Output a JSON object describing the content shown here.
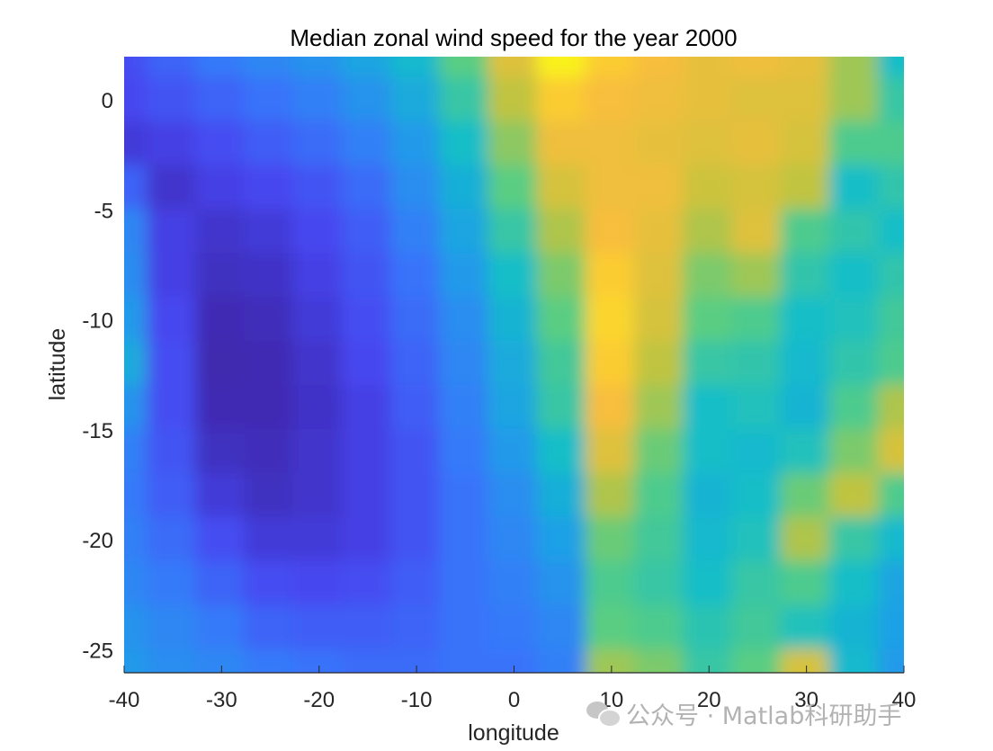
{
  "chart_data": {
    "type": "heatmap",
    "title": "Median zonal wind speed for the year 2000",
    "xlabel": "longitude",
    "ylabel": "latitude",
    "xlim": [
      -40,
      40
    ],
    "ylim": [
      -26,
      2
    ],
    "xticks": [
      -40,
      -30,
      -20,
      -10,
      0,
      10,
      20,
      30,
      40
    ],
    "yticks": [
      0,
      -5,
      -10,
      -15,
      -20,
      -25
    ],
    "colormap": "parula",
    "colorbar": false,
    "grid": false,
    "lon": [
      -40,
      -35,
      -30,
      -25,
      -20,
      -15,
      -10,
      -5,
      0,
      5,
      10,
      15,
      20,
      25,
      30,
      35,
      40
    ],
    "lat": [
      2,
      0,
      -2,
      -4,
      -6,
      -8,
      -10,
      -12,
      -14,
      -16,
      -18,
      -20,
      -22,
      -24,
      -26
    ],
    "values": [
      [
        0.14,
        0.2,
        0.26,
        0.3,
        0.34,
        0.4,
        0.48,
        0.62,
        0.8,
        0.98,
        0.9,
        0.86,
        0.82,
        0.84,
        0.82,
        0.7,
        0.5
      ],
      [
        0.12,
        0.16,
        0.2,
        0.24,
        0.28,
        0.34,
        0.42,
        0.56,
        0.74,
        0.9,
        0.86,
        0.84,
        0.82,
        0.8,
        0.8,
        0.7,
        0.56
      ],
      [
        0.08,
        0.1,
        0.14,
        0.18,
        0.22,
        0.28,
        0.36,
        0.5,
        0.68,
        0.84,
        0.84,
        0.82,
        0.8,
        0.82,
        0.78,
        0.6,
        0.6
      ],
      [
        0.2,
        0.06,
        0.1,
        0.12,
        0.16,
        0.22,
        0.32,
        0.44,
        0.62,
        0.78,
        0.84,
        0.84,
        0.76,
        0.78,
        0.74,
        0.5,
        0.55
      ],
      [
        0.3,
        0.1,
        0.06,
        0.08,
        0.12,
        0.18,
        0.28,
        0.4,
        0.56,
        0.72,
        0.86,
        0.82,
        0.72,
        0.8,
        0.6,
        0.55,
        0.5
      ],
      [
        0.32,
        0.1,
        0.04,
        0.05,
        0.1,
        0.16,
        0.24,
        0.36,
        0.5,
        0.66,
        0.9,
        0.8,
        0.66,
        0.7,
        0.55,
        0.5,
        0.55
      ],
      [
        0.36,
        0.12,
        0.02,
        0.03,
        0.08,
        0.14,
        0.22,
        0.32,
        0.46,
        0.62,
        0.92,
        0.78,
        0.62,
        0.6,
        0.5,
        0.52,
        0.58
      ],
      [
        0.42,
        0.14,
        0.01,
        0.02,
        0.06,
        0.12,
        0.2,
        0.3,
        0.42,
        0.58,
        0.9,
        0.74,
        0.56,
        0.55,
        0.48,
        0.55,
        0.6
      ],
      [
        0.34,
        0.14,
        0.02,
        0.02,
        0.05,
        0.1,
        0.18,
        0.28,
        0.4,
        0.56,
        0.86,
        0.7,
        0.5,
        0.52,
        0.46,
        0.6,
        0.72
      ],
      [
        0.28,
        0.16,
        0.04,
        0.03,
        0.06,
        0.1,
        0.16,
        0.26,
        0.36,
        0.5,
        0.8,
        0.64,
        0.5,
        0.48,
        0.52,
        0.66,
        0.78
      ],
      [
        0.26,
        0.18,
        0.08,
        0.04,
        0.06,
        0.1,
        0.16,
        0.24,
        0.32,
        0.44,
        0.72,
        0.6,
        0.46,
        0.5,
        0.64,
        0.74,
        0.6
      ],
      [
        0.28,
        0.22,
        0.14,
        0.08,
        0.08,
        0.1,
        0.16,
        0.24,
        0.3,
        0.38,
        0.64,
        0.58,
        0.48,
        0.52,
        0.72,
        0.56,
        0.48
      ],
      [
        0.3,
        0.26,
        0.2,
        0.14,
        0.12,
        0.14,
        0.18,
        0.24,
        0.28,
        0.34,
        0.6,
        0.56,
        0.5,
        0.56,
        0.6,
        0.5,
        0.4
      ],
      [
        0.34,
        0.3,
        0.26,
        0.2,
        0.18,
        0.18,
        0.2,
        0.24,
        0.26,
        0.3,
        0.62,
        0.6,
        0.54,
        0.58,
        0.52,
        0.46,
        0.38
      ],
      [
        0.36,
        0.32,
        0.3,
        0.26,
        0.24,
        0.22,
        0.22,
        0.24,
        0.24,
        0.28,
        0.7,
        0.66,
        0.56,
        0.62,
        0.78,
        0.48,
        0.36
      ]
    ]
  },
  "watermark": {
    "icon": "wechat-icon",
    "text": "公众号 · Matlab科研助手"
  }
}
